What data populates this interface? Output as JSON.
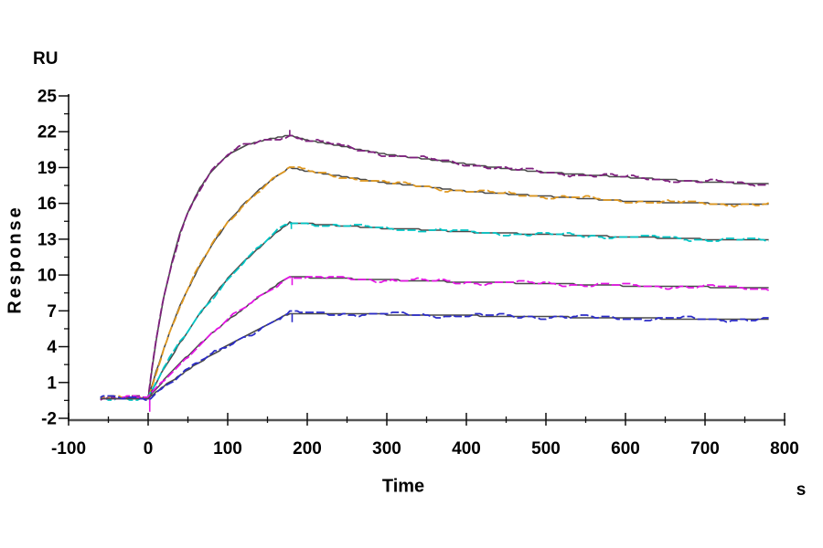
{
  "labels": {
    "y_unit": "RU",
    "y_axis": "Response",
    "x_axis": "Time",
    "x_unit": "s"
  },
  "chart_data": {
    "type": "line",
    "title": "",
    "xlabel": "Time",
    "x_unit": "s",
    "ylabel": "Response",
    "y_unit": "RU",
    "xlim": [
      -100,
      800
    ],
    "ylim": [
      -2,
      25
    ],
    "x_major_ticks": [
      -100,
      0,
      100,
      200,
      300,
      400,
      500,
      600,
      700,
      800
    ],
    "x_minor_step": 50,
    "y_major_ticks": [
      25,
      22,
      19,
      16,
      13,
      10,
      7,
      4,
      1,
      -2
    ],
    "y_minor_step": 1.5,
    "grid": false,
    "legend": "none",
    "background": "#ffffff",
    "axis_color": "#555555",
    "yaxis_color": "#2b2b2b",
    "tick_color": "#111111",
    "fit_color": "#4a4a4a",
    "description": "SPR sensorgram: five analyte concentration traces (association 0-178 s, dissociation to 780 s) each overlaid with a dark kinetic fit line",
    "series": [
      {
        "name": "purple-highest",
        "color": "#7E1E7E",
        "points": [
          [
            -60,
            -0.3
          ],
          [
            0,
            -0.3
          ],
          [
            5,
            2.2
          ],
          [
            10,
            4.5
          ],
          [
            15,
            6.4
          ],
          [
            20,
            8.2
          ],
          [
            30,
            11.1
          ],
          [
            40,
            13.5
          ],
          [
            50,
            15.3
          ],
          [
            65,
            17.3
          ],
          [
            80,
            18.7
          ],
          [
            100,
            20.0
          ],
          [
            120,
            20.8
          ],
          [
            140,
            21.2
          ],
          [
            160,
            21.5
          ],
          [
            178,
            21.7
          ],
          [
            200,
            21.3
          ],
          [
            250,
            20.7
          ],
          [
            300,
            20.1
          ],
          [
            350,
            19.7
          ],
          [
            400,
            19.3
          ],
          [
            450,
            18.9
          ],
          [
            500,
            18.6
          ],
          [
            550,
            18.4
          ],
          [
            600,
            18.2
          ],
          [
            650,
            18.0
          ],
          [
            700,
            17.8
          ],
          [
            740,
            17.7
          ],
          [
            780,
            17.6
          ]
        ],
        "spikes": [
          {
            "t": 178,
            "from": 21.7,
            "to": 22.15
          }
        ]
      },
      {
        "name": "orange",
        "color": "#E0981E",
        "points": [
          [
            -60,
            -0.3
          ],
          [
            0,
            -0.3
          ],
          [
            10,
            1.9
          ],
          [
            20,
            3.9
          ],
          [
            30,
            5.7
          ],
          [
            40,
            7.4
          ],
          [
            50,
            8.8
          ],
          [
            65,
            10.8
          ],
          [
            80,
            12.5
          ],
          [
            100,
            14.4
          ],
          [
            120,
            15.9
          ],
          [
            140,
            17.2
          ],
          [
            160,
            18.2
          ],
          [
            178,
            19.0
          ],
          [
            200,
            18.7
          ],
          [
            250,
            18.2
          ],
          [
            300,
            17.7
          ],
          [
            350,
            17.4
          ],
          [
            400,
            17.0
          ],
          [
            450,
            16.8
          ],
          [
            500,
            16.6
          ],
          [
            550,
            16.4
          ],
          [
            600,
            16.2
          ],
          [
            650,
            16.1
          ],
          [
            700,
            16.0
          ],
          [
            780,
            15.9
          ]
        ],
        "spikes": []
      },
      {
        "name": "cyan",
        "color": "#00C5C5",
        "points": [
          [
            -60,
            -0.3
          ],
          [
            0,
            -0.3
          ],
          [
            20,
            2.2
          ],
          [
            40,
            4.3
          ],
          [
            60,
            6.3
          ],
          [
            80,
            8.1
          ],
          [
            100,
            9.7
          ],
          [
            120,
            11.1
          ],
          [
            140,
            12.3
          ],
          [
            160,
            13.5
          ],
          [
            178,
            14.4
          ],
          [
            200,
            14.3
          ],
          [
            250,
            14.1
          ],
          [
            300,
            13.9
          ],
          [
            350,
            13.8
          ],
          [
            400,
            13.6
          ],
          [
            450,
            13.5
          ],
          [
            500,
            13.4
          ],
          [
            550,
            13.3
          ],
          [
            600,
            13.2
          ],
          [
            650,
            13.1
          ],
          [
            700,
            13.0
          ],
          [
            780,
            12.9
          ]
        ],
        "spikes": [
          {
            "t": 2,
            "from": -0.2,
            "to": -0.95
          },
          {
            "t": 180,
            "from": 14.35,
            "to": 13.85
          }
        ]
      },
      {
        "name": "magenta",
        "color": "#E414E4",
        "points": [
          [
            -60,
            -0.3
          ],
          [
            0,
            -0.3
          ],
          [
            20,
            1.2
          ],
          [
            40,
            2.6
          ],
          [
            60,
            3.9
          ],
          [
            80,
            5.1
          ],
          [
            100,
            6.2
          ],
          [
            120,
            7.2
          ],
          [
            140,
            8.2
          ],
          [
            160,
            9.1
          ],
          [
            178,
            9.9
          ],
          [
            200,
            9.8
          ],
          [
            300,
            9.6
          ],
          [
            400,
            9.4
          ],
          [
            500,
            9.3
          ],
          [
            600,
            9.1
          ],
          [
            700,
            9.0
          ],
          [
            780,
            8.9
          ]
        ],
        "spikes": [
          {
            "t": 2,
            "from": -0.2,
            "to": -1.45
          },
          {
            "t": 181,
            "from": 9.8,
            "to": 9.15
          }
        ]
      },
      {
        "name": "blue-lowest",
        "color": "#2B2BC8",
        "points": [
          [
            -60,
            -0.3
          ],
          [
            0,
            -0.3
          ],
          [
            20,
            0.7
          ],
          [
            40,
            1.6
          ],
          [
            60,
            2.5
          ],
          [
            80,
            3.3
          ],
          [
            100,
            4.1
          ],
          [
            120,
            4.8
          ],
          [
            140,
            5.5
          ],
          [
            160,
            6.2
          ],
          [
            178,
            6.8
          ],
          [
            200,
            6.8
          ],
          [
            300,
            6.7
          ],
          [
            400,
            6.6
          ],
          [
            500,
            6.5
          ],
          [
            600,
            6.4
          ],
          [
            700,
            6.3
          ],
          [
            780,
            6.3
          ]
        ],
        "spikes": [
          {
            "t": 181,
            "from": 6.75,
            "to": 6.05
          }
        ]
      }
    ]
  }
}
